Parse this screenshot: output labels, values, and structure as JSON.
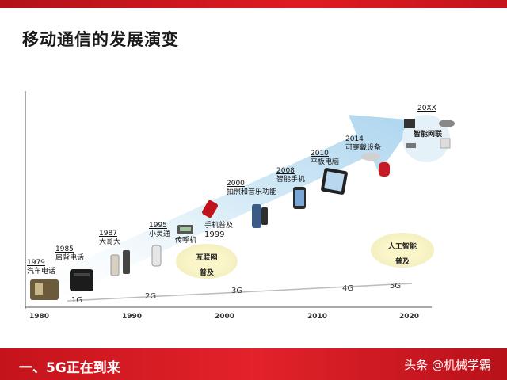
{
  "title": "移动通信的发展演变",
  "footer": {
    "title": "一、5G正在到来",
    "watermark": "头条 @机械学霸"
  },
  "axis_years": [
    "1980",
    "1990",
    "2000",
    "2010",
    "2020"
  ],
  "generations": [
    "1G",
    "2G",
    "3G",
    "4G",
    "5G"
  ],
  "milestones": [
    {
      "year": "1979",
      "label": "汽车电话"
    },
    {
      "year": "1985",
      "label": "肩背电话"
    },
    {
      "year": "1987",
      "label": "大哥大"
    },
    {
      "year": "1995",
      "label": "小灵通"
    },
    {
      "label": "传呼机"
    },
    {
      "year": "2000",
      "label": "拍照和音乐功能"
    },
    {
      "label": "手机普及",
      "year": "1999"
    },
    {
      "year": "2008",
      "label": "智能手机"
    },
    {
      "year": "2010",
      "label": "平板电脑"
    },
    {
      "year": "2014",
      "label": "可穿戴设备"
    },
    {
      "year": "20XX",
      "label": "智能网联"
    }
  ],
  "bubbles": [
    {
      "line1": "互联网",
      "line2": "普及"
    },
    {
      "line1": "人工智能",
      "line2": "普及"
    }
  ],
  "colors": {
    "accent": "#d7161e",
    "arrow": "#cfe6f4"
  }
}
